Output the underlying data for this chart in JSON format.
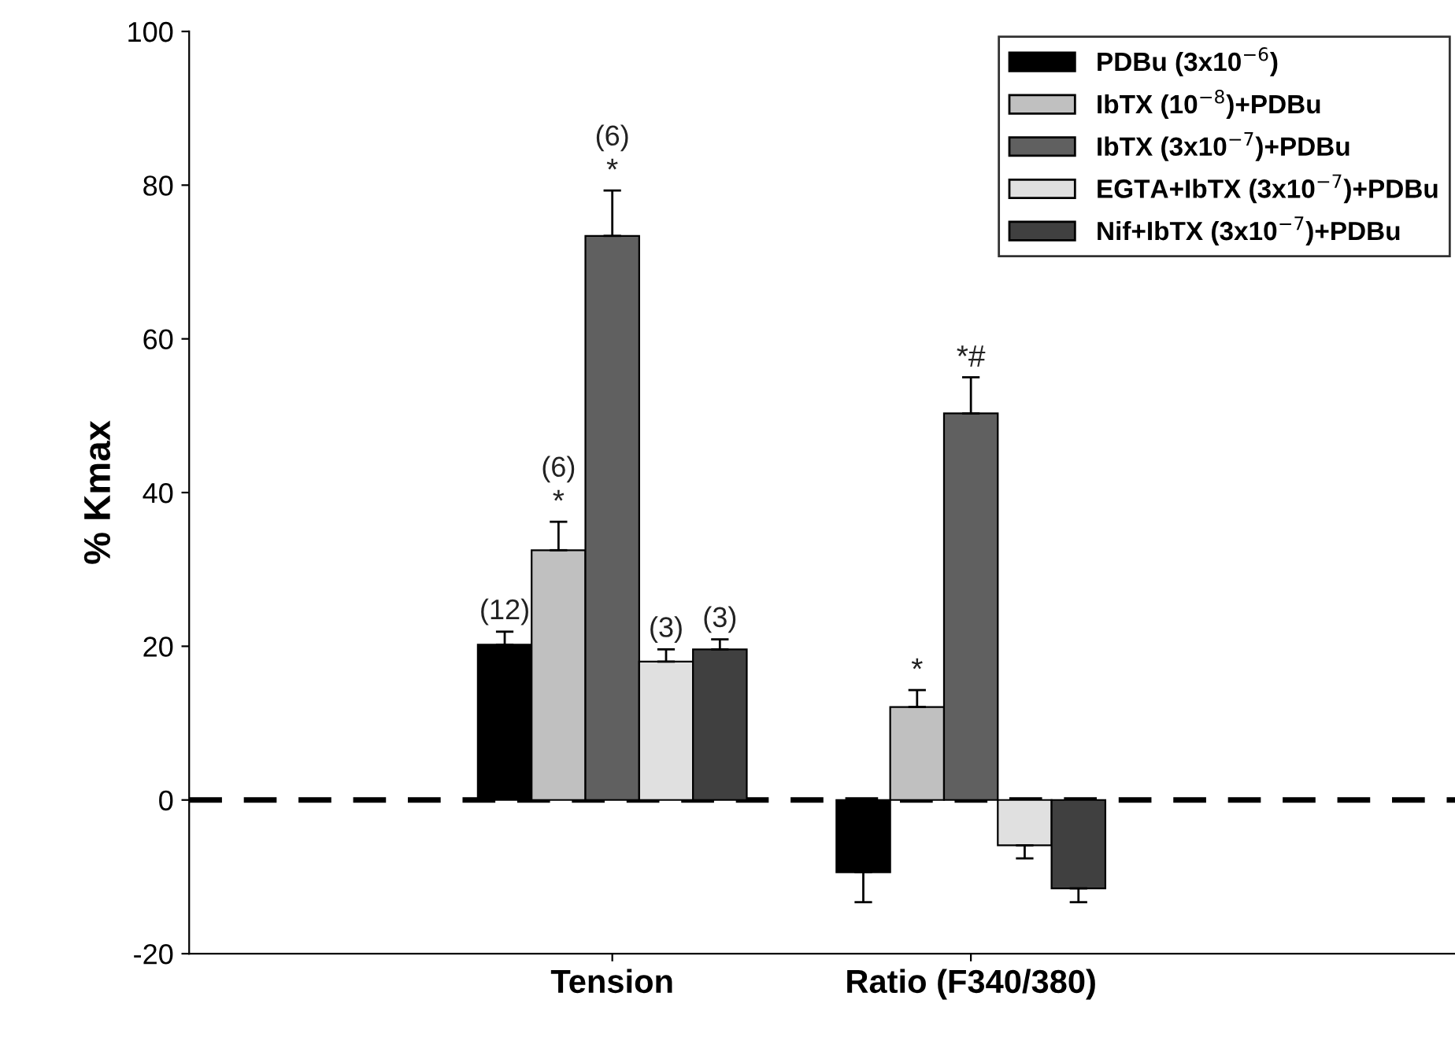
{
  "chart_data": {
    "type": "bar",
    "ylabel": "% Kmax",
    "categories": [
      "Tension",
      "Ratio (F340/380)"
    ],
    "series": [
      {
        "name": "PDBu (3x10$^{−6}$)",
        "color": "#000000",
        "values": [
          20.2,
          -9.4
        ],
        "errors": [
          1.7,
          3.9
        ]
      },
      {
        "name": "IbTX (10$^{−8}$)+PDBu",
        "color": "#c0c0c0",
        "values": [
          32.5,
          12.1
        ],
        "errors": [
          3.7,
          2.2
        ],
        "value_labels": [
          "*",
          "*"
        ]
      },
      {
        "name": "IbTX (3x10$^{−7}$)+PDBu",
        "color": "#606060",
        "values": [
          73.4,
          50.3
        ],
        "errors": [
          5.9,
          4.7
        ],
        "value_labels": [
          "*",
          "*#"
        ]
      },
      {
        "name": "EGTA+IbTX (3x10$^{−7}$)+PDBu",
        "color": "#e0e0e0",
        "values": [
          18.0,
          -5.9
        ],
        "errors": [
          1.6,
          1.7
        ]
      },
      {
        "name": "Nif+IbTX (3x10$^{−7}$)+PDBu",
        "color": "#404040",
        "values": [
          19.6,
          -11.5
        ],
        "errors": [
          1.3,
          1.8
        ]
      }
    ],
    "ylim": [
      -20,
      100
    ],
    "yticks": [
      -20,
      0,
      20,
      40,
      60,
      80,
      100
    ],
    "ref_lines": [
      {
        "axis": "y",
        "value": 0,
        "color": "#000000",
        "line_style": "dashed"
      }
    ],
    "annotations": [
      "(12)",
      "(6)",
      "(6)",
      "(3)",
      "(3)"
    ],
    "legend": "top right",
    "grid": false
  }
}
